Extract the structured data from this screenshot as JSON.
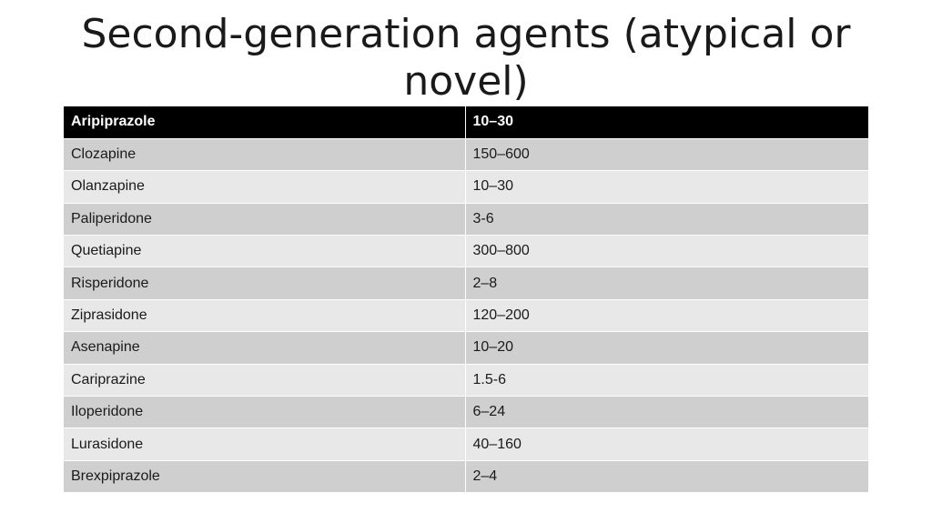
{
  "title": "Second-generation agents (atypical or novel)",
  "table": {
    "header": [
      "Aripiprazole",
      "10–30"
    ],
    "rows": [
      [
        "Clozapine",
        "150–600"
      ],
      [
        "Olanzapine",
        "10–30"
      ],
      [
        "Paliperidone",
        "3-6"
      ],
      [
        "Quetiapine",
        "300–800"
      ],
      [
        "Risperidone",
        "2–8"
      ],
      [
        "Ziprasidone",
        "120–200"
      ],
      [
        "Asenapine",
        "10–20"
      ],
      [
        "Cariprazine",
        "1.5-6"
      ],
      [
        "Iloperidone",
        "6–24"
      ],
      [
        "Lurasidone",
        "40–160"
      ],
      [
        "Brexpiprazole",
        "2–4"
      ]
    ]
  },
  "colors": {
    "header_bg": "#000000",
    "header_text": "#ffffff",
    "row_dark": "#cfcfcf",
    "row_light": "#e8e8e8"
  }
}
